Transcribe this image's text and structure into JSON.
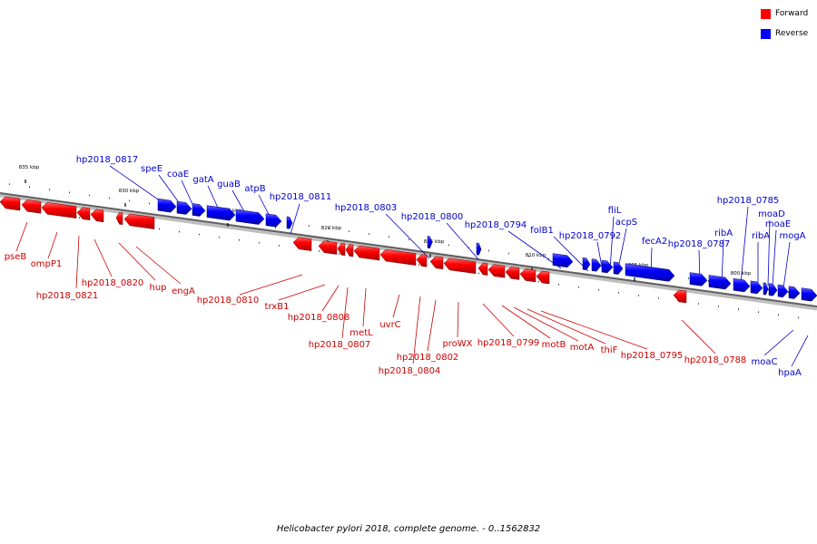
{
  "legend": {
    "forward_label": "Forward",
    "reverse_label": "Reverse",
    "forward_color": "#ff0000",
    "reverse_color": "#0000ff"
  },
  "caption": "Helicobacter pylori 2018, complete genome. - 0..1562832",
  "scale": {
    "unit": "kbp",
    "ticks": [
      "835 kbp",
      "830 kbp",
      "825 kbp",
      "820 kbp",
      "815 kbp",
      "810 kbp",
      "805 kbp",
      "800 kbp"
    ]
  },
  "genes": {
    "forward": [
      "pseB",
      "ompP1",
      "hp2018_0821",
      "hp2018_0820",
      "hup",
      "engA",
      "hp2018_0810",
      "trxB1",
      "hp2018_0808",
      "hp2018_0807",
      "metL",
      "uvrC",
      "hp2018_0804",
      "hp2018_0802",
      "proWX",
      "hp2018_0799",
      "motB",
      "motA",
      "thiF",
      "hp2018_0795",
      "hp2018_0788"
    ],
    "reverse": [
      "hp2018_0817",
      "speE",
      "coaE",
      "gatA",
      "guaB",
      "atpB",
      "hp2018_0811",
      "hp2018_0803",
      "hp2018_0800",
      "hp2018_0794",
      "folB1",
      "hp2018_0792",
      "fliL",
      "acpS",
      "fecA2",
      "hp2018_0787",
      "hp2018_0785",
      "ribA",
      "moaD",
      "moaE",
      "ribA",
      "mogA",
      "moaC",
      "hpaA"
    ]
  }
}
